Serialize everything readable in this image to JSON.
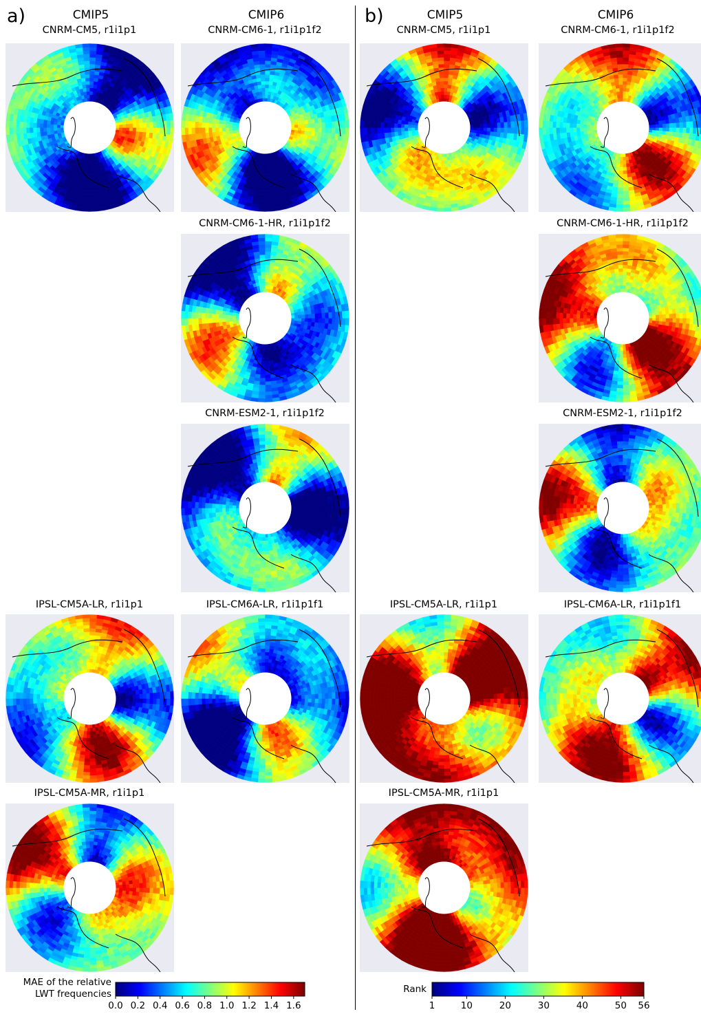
{
  "panels": [
    {
      "letter": "a)",
      "cols": [
        "CMIP5",
        "CMIP6"
      ]
    },
    {
      "letter": "b)",
      "cols": [
        "CMIP5",
        "CMIP6"
      ]
    }
  ],
  "maps": {
    "a_cnrm_cm5": "CNRM-CM5, r1i1p1",
    "a_cnrm_cm6_1": "CNRM-CM6-1, r1i1p1f2",
    "a_cnrm_cm6_1_hr": "CNRM-CM6-1-HR, r1i1p1f2",
    "a_cnrm_esm2_1": "CNRM-ESM2-1, r1i1p1f2",
    "a_ipsl_cm5a_lr": "IPSL-CM5A-LR, r1i1p1",
    "a_ipsl_cm6a_lr": "IPSL-CM6A-LR, r1i1p1f1",
    "a_ipsl_cm5a_mr": "IPSL-CM5A-MR, r1i1p1",
    "b_cnrm_cm5": "CNRM-CM5, r1i1p1",
    "b_cnrm_cm6_1": "CNRM-CM6-1, r1i1p1f2",
    "b_cnrm_cm6_1_hr": "CNRM-CM6-1-HR, r1i1p1f2",
    "b_cnrm_esm2_1": "CNRM-ESM2-1, r1i1p1f2",
    "b_ipsl_cm5a_lr": "IPSL-CM5A-LR, r1i1p1",
    "b_ipsl_cm6a_lr": "IPSL-CM6A-LR, r1i1p1f1",
    "b_ipsl_cm5a_mr": "IPSL-CM5A-MR, r1i1p1"
  },
  "chart_data": [
    {
      "type": "heatmap",
      "panel": "a)",
      "colorbar_label_line1": "MAE of the relative",
      "colorbar_label_line2": "LWT frequencies",
      "colormap": "jet",
      "vmin": 0.0,
      "vmax": 1.7,
      "ticks": [
        "0.0",
        "0.2",
        "0.4",
        "0.6",
        "0.8",
        "1.0",
        "1.2",
        "1.4",
        "1.6"
      ],
      "tick_values": [
        0.0,
        0.2,
        0.4,
        0.6,
        0.8,
        1.0,
        1.2,
        1.4,
        1.6
      ],
      "maps": [
        {
          "model": "CNRM-CM5, r1i1p1",
          "column": "CMIP5",
          "level": 0.45
        },
        {
          "model": "CNRM-CM6-1, r1i1p1f2",
          "column": "CMIP6",
          "level": 0.5
        },
        {
          "model": "CNRM-CM6-1-HR, r1i1p1f2",
          "column": "CMIP6",
          "level": 0.55
        },
        {
          "model": "CNRM-ESM2-1, r1i1p1f2",
          "column": "CMIP6",
          "level": 0.45
        },
        {
          "model": "IPSL-CM5A-LR, r1i1p1",
          "column": "CMIP5",
          "level": 0.85
        },
        {
          "model": "IPSL-CM6A-LR, r1i1p1f1",
          "column": "CMIP6",
          "level": 0.55
        },
        {
          "model": "IPSL-CM5A-MR, r1i1p1",
          "column": "CMIP5",
          "level": 0.9
        }
      ]
    },
    {
      "type": "heatmap",
      "panel": "b)",
      "colorbar_label": "Rank",
      "colormap": "jet",
      "vmin": 1,
      "vmax": 56,
      "ticks": [
        "1",
        "10",
        "20",
        "30",
        "40",
        "50",
        "56"
      ],
      "tick_values": [
        1,
        10,
        20,
        30,
        40,
        50,
        56
      ],
      "maps": [
        {
          "model": "CNRM-CM5, r1i1p1",
          "column": "CMIP5",
          "level": 25
        },
        {
          "model": "CNRM-CM6-1, r1i1p1f2",
          "column": "CMIP6",
          "level": 30
        },
        {
          "model": "CNRM-CM6-1-HR, r1i1p1f2",
          "column": "CMIP6",
          "level": 38
        },
        {
          "model": "CNRM-ESM2-1, r1i1p1f2",
          "column": "CMIP6",
          "level": 26
        },
        {
          "model": "IPSL-CM5A-LR, r1i1p1",
          "column": "CMIP5",
          "level": 50
        },
        {
          "model": "IPSL-CM6A-LR, r1i1p1f1",
          "column": "CMIP6",
          "level": 35
        },
        {
          "model": "IPSL-CM5A-MR, r1i1p1",
          "column": "CMIP5",
          "level": 48
        }
      ]
    }
  ]
}
